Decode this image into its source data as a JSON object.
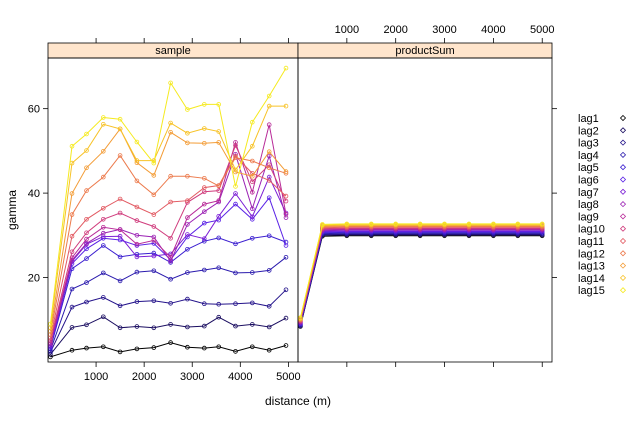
{
  "chart_data": {
    "type": "line",
    "ylabel": "gamma",
    "xlabel": "distance (m)",
    "x_ticks": [
      1000,
      2000,
      3000,
      4000,
      5000
    ],
    "y_ticks": [
      20,
      40,
      60
    ],
    "xlim": [
      0,
      5200
    ],
    "ylim": [
      0,
      72
    ],
    "palette": [
      "#000000",
      "#1a0d60",
      "#23128a",
      "#2a1aad",
      "#3b1fd0",
      "#5a22e6",
      "#7b1fd6",
      "#9b22b4",
      "#b82a98",
      "#d03d7d",
      "#e25a62",
      "#ec7a4c",
      "#f39c36",
      "#f7c226",
      "#f5ea1f"
    ],
    "panels": [
      {
        "strip": "sample",
        "x": [
          50,
          500,
          800,
          1150,
          1500,
          1850,
          2200,
          2550,
          2900,
          3250,
          3550,
          3900,
          4250,
          4600,
          4950
        ],
        "series": [
          {
            "name": "lag1",
            "values": [
              1.2,
              2.8,
              3.3,
              3.6,
              2.4,
              3.1,
              3.4,
              4.6,
              3.5,
              3.3,
              3.6,
              2.5,
              3.6,
              2.8,
              3.9
            ]
          },
          {
            "name": "lag2",
            "values": [
              1.8,
              8.2,
              8.8,
              10.7,
              8.1,
              8.4,
              8.1,
              8.9,
              8.3,
              8.5,
              10.6,
              8.5,
              8.9,
              8.3,
              10.4
            ]
          },
          {
            "name": "lag3",
            "values": [
              2.3,
              13.0,
              14.2,
              15.3,
              13.3,
              14.3,
              14.5,
              13.9,
              14.9,
              13.8,
              13.7,
              13.8,
              14.0,
              13.2,
              17.1
            ]
          },
          {
            "name": "lag4",
            "values": [
              2.7,
              17.3,
              18.8,
              21.1,
              19.2,
              21.3,
              21.6,
              19.6,
              21.2,
              21.8,
              22.3,
              21.1,
              21.2,
              21.7,
              24.8
            ]
          },
          {
            "name": "lag5",
            "values": [
              3.1,
              22.1,
              24.5,
              27.6,
              24.9,
              25.5,
              25.8,
              23.6,
              26.7,
              28.6,
              29.4,
              28.0,
              29.3,
              29.9,
              28.4
            ]
          },
          {
            "name": "lag6",
            "values": [
              3.5,
              23.3,
              26.8,
              29.3,
              28.9,
              27.6,
              28.1,
              24.2,
              29.6,
              32.9,
              33.6,
              37.4,
              33.8,
              38.9,
              27.6
            ]
          },
          {
            "name": "lag7",
            "values": [
              3.8,
              23.8,
              27.9,
              29.7,
              29.8,
              24.9,
              25.1,
              25.6,
              30.2,
              29.2,
              34.5,
              39.9,
              34.4,
              43.8,
              35.3
            ]
          },
          {
            "name": "lag8",
            "values": [
              4.2,
              24.1,
              28.1,
              30.5,
              31.4,
              30.0,
              29.6,
              23.9,
              32.6,
              35.6,
              37.9,
              49.2,
              36.3,
              48.8,
              34.2
            ]
          },
          {
            "name": "lag9",
            "values": [
              4.6,
              24.7,
              29.1,
              31.9,
              31.3,
              27.9,
              28.8,
              24.8,
              34.2,
              37.4,
              38.2,
              52.0,
              40.2,
              56.2,
              35.0
            ]
          },
          {
            "name": "lag10",
            "values": [
              5.1,
              26.1,
              30.6,
              33.8,
              35.3,
              33.5,
              32.1,
              29.3,
              37.8,
              40.3,
              40.6,
              51.3,
              42.7,
              46.7,
              38.1
            ]
          },
          {
            "name": "lag11",
            "values": [
              5.7,
              29.8,
              33.8,
              36.4,
              38.6,
              36.7,
              34.9,
              37.9,
              38.2,
              41.3,
              41.8,
              48.8,
              44.7,
              43.0,
              39.3
            ]
          },
          {
            "name": "lag12",
            "values": [
              6.5,
              34.9,
              40.6,
              43.8,
              48.9,
              42.9,
              39.6,
              44.0,
              44.0,
              43.5,
              41.7,
              48.4,
              47.6,
              46.0,
              44.7
            ]
          },
          {
            "name": "lag13",
            "values": [
              7.3,
              39.9,
              46.0,
              49.9,
              55.2,
              47.2,
              44.2,
              54.4,
              51.9,
              51.8,
              52.0,
              45.0,
              44.0,
              49.8,
              45.1
            ]
          },
          {
            "name": "lag14",
            "values": [
              8.1,
              47.1,
              50.1,
              56.3,
              55.2,
              47.7,
              47.7,
              56.6,
              54.2,
              55.3,
              54.6,
              45.5,
              51.1,
              60.6,
              60.6
            ]
          },
          {
            "name": "lag15",
            "values": [
              9.0,
              51.1,
              54.0,
              57.9,
              57.5,
              52.1,
              47.1,
              66.1,
              59.8,
              61.0,
              61.0,
              41.6,
              56.8,
              63.0,
              69.6
            ]
          }
        ]
      },
      {
        "strip": "productSum",
        "x": [
          50,
          500,
          1000,
          1500,
          2000,
          2500,
          3000,
          3500,
          4000,
          4500,
          5000
        ],
        "series": [
          {
            "name": "lag1",
            "values": [
              8.4,
              29.8,
              29.9,
              29.9,
              29.9,
              29.9,
              29.9,
              29.9,
              29.9,
              29.9,
              29.9
            ]
          },
          {
            "name": "lag2",
            "values": [
              8.5,
              30.0,
              30.1,
              30.1,
              30.1,
              30.1,
              30.1,
              30.1,
              30.1,
              30.1,
              30.1
            ]
          },
          {
            "name": "lag3",
            "values": [
              8.7,
              30.2,
              30.3,
              30.3,
              30.3,
              30.3,
              30.3,
              30.3,
              30.3,
              30.3,
              30.3
            ]
          },
          {
            "name": "lag4",
            "values": [
              8.8,
              30.4,
              30.5,
              30.5,
              30.5,
              30.5,
              30.5,
              30.5,
              30.5,
              30.5,
              30.5
            ]
          },
          {
            "name": "lag5",
            "values": [
              9.0,
              30.6,
              30.7,
              30.7,
              30.7,
              30.7,
              30.7,
              30.7,
              30.7,
              30.7,
              30.7
            ]
          },
          {
            "name": "lag6",
            "values": [
              9.1,
              30.8,
              30.9,
              30.9,
              30.9,
              30.9,
              30.9,
              30.9,
              30.9,
              30.9,
              30.9
            ]
          },
          {
            "name": "lag7",
            "values": [
              9.3,
              31.0,
              31.1,
              31.1,
              31.1,
              31.1,
              31.1,
              31.1,
              31.1,
              31.1,
              31.1
            ]
          },
          {
            "name": "lag8",
            "values": [
              9.4,
              31.2,
              31.3,
              31.3,
              31.3,
              31.3,
              31.3,
              31.3,
              31.3,
              31.3,
              31.3
            ]
          },
          {
            "name": "lag9",
            "values": [
              9.6,
              31.4,
              31.5,
              31.5,
              31.5,
              31.5,
              31.5,
              31.5,
              31.5,
              31.5,
              31.5
            ]
          },
          {
            "name": "lag10",
            "values": [
              9.7,
              31.6,
              31.7,
              31.7,
              31.7,
              31.7,
              31.7,
              31.7,
              31.7,
              31.7,
              31.7
            ]
          },
          {
            "name": "lag11",
            "values": [
              9.9,
              31.8,
              31.9,
              31.9,
              31.9,
              31.9,
              31.9,
              31.9,
              31.9,
              31.9,
              31.9
            ]
          },
          {
            "name": "lag12",
            "values": [
              10.0,
              32.0,
              32.1,
              32.1,
              32.1,
              32.1,
              32.1,
              32.1,
              32.1,
              32.1,
              32.1
            ]
          },
          {
            "name": "lag13",
            "values": [
              10.2,
              32.2,
              32.3,
              32.3,
              32.3,
              32.3,
              32.3,
              32.3,
              32.3,
              32.3,
              32.3
            ]
          },
          {
            "name": "lag14",
            "values": [
              10.3,
              32.4,
              32.5,
              32.5,
              32.5,
              32.5,
              32.5,
              32.5,
              32.5,
              32.5,
              32.5
            ]
          },
          {
            "name": "lag15",
            "values": [
              10.5,
              32.6,
              32.7,
              32.7,
              32.7,
              32.7,
              32.7,
              32.7,
              32.7,
              32.7,
              32.7
            ]
          }
        ]
      }
    ],
    "legend": [
      "lag1",
      "lag2",
      "lag3",
      "lag4",
      "lag5",
      "lag6",
      "lag7",
      "lag8",
      "lag9",
      "lag10",
      "lag11",
      "lag12",
      "lag13",
      "lag14",
      "lag15"
    ],
    "legend_position": "right",
    "strip_color": "#ffe5cc",
    "grid": false
  }
}
